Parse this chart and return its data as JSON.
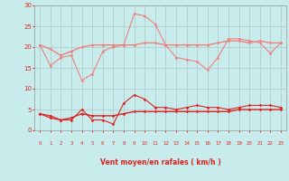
{
  "xlabel": "Vent moyen/en rafales ( km/h )",
  "background_color": "#c8ecec",
  "grid_color": "#b0c8c8",
  "x": [
    0,
    1,
    2,
    3,
    4,
    5,
    6,
    7,
    8,
    9,
    10,
    11,
    12,
    13,
    14,
    15,
    16,
    17,
    18,
    19,
    20,
    21,
    22,
    23
  ],
  "line1": [
    20.5,
    15.5,
    17.5,
    18.0,
    12.0,
    13.5,
    19.0,
    20.0,
    20.5,
    28.0,
    27.5,
    25.5,
    20.5,
    17.5,
    17.0,
    16.5,
    14.5,
    17.5,
    22.0,
    22.0,
    21.5,
    21.0,
    18.5,
    21.0
  ],
  "line2": [
    20.5,
    19.5,
    18.0,
    19.0,
    20.0,
    20.5,
    20.5,
    20.5,
    20.5,
    20.5,
    21.0,
    21.0,
    20.5,
    20.5,
    20.5,
    20.5,
    20.5,
    21.0,
    21.5,
    21.5,
    21.0,
    21.5,
    21.0,
    21.0
  ],
  "line3": [
    4.0,
    3.5,
    2.5,
    2.5,
    5.0,
    2.5,
    2.5,
    1.5,
    6.5,
    8.5,
    7.5,
    5.5,
    5.5,
    5.0,
    5.5,
    6.0,
    5.5,
    5.5,
    5.0,
    5.5,
    6.0,
    6.0,
    6.0,
    5.5
  ],
  "line4": [
    4.0,
    3.0,
    2.5,
    3.0,
    4.0,
    3.5,
    3.5,
    3.5,
    4.0,
    4.5,
    4.5,
    4.5,
    4.5,
    4.5,
    4.5,
    4.5,
    4.5,
    4.5,
    4.5,
    5.0,
    5.0,
    5.0,
    5.0,
    5.0
  ],
  "color_light": "#f08080",
  "color_dark": "#dd2222",
  "ylim": [
    0,
    30
  ],
  "yticks": [
    0,
    5,
    10,
    15,
    20,
    25,
    30
  ],
  "arrows": [
    "↓",
    "↓",
    "↙",
    "↙",
    "↓",
    "→",
    "↙",
    "↗",
    "↓",
    "↙",
    "↙",
    "↙",
    "↙",
    "↙",
    "↙",
    "↖",
    "↖",
    "↙",
    "↓",
    "↙",
    "↓",
    "↓",
    "↓",
    "↘"
  ]
}
